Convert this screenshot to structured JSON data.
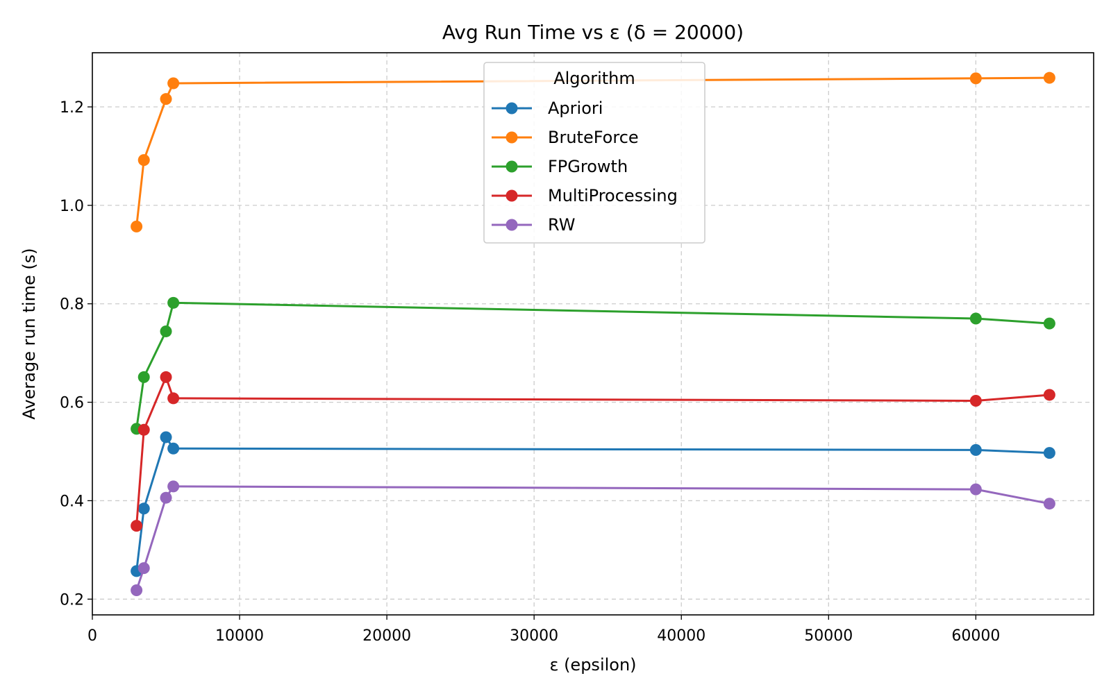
{
  "chart_data": {
    "type": "line",
    "title": "Avg Run Time vs ε (δ = 20000)",
    "xlabel": "ε (epsilon)",
    "ylabel": "Average run time (s)",
    "xlim": [
      0,
      68000
    ],
    "ylim": [
      0.168,
      1.31
    ],
    "xticks": [
      0,
      10000,
      20000,
      30000,
      40000,
      50000,
      60000
    ],
    "yticks": [
      0.2,
      0.4,
      0.6,
      0.8,
      1.0,
      1.2
    ],
    "ytick_labels": [
      "0.2",
      "0.4",
      "0.6",
      "0.8",
      "1.0",
      "1.2"
    ],
    "grid": true,
    "legend": {
      "title": "Algorithm",
      "position": "top-center"
    },
    "x": [
      3000,
      3500,
      5000,
      5500,
      60000,
      65000
    ],
    "series": [
      {
        "name": "Apriori",
        "color": "#1f77b4",
        "values": [
          0.257,
          0.384,
          0.529,
          0.506,
          0.503,
          0.497
        ]
      },
      {
        "name": "BruteForce",
        "color": "#ff7f0e",
        "values": [
          0.957,
          1.092,
          1.216,
          1.248,
          1.258,
          1.259
        ]
      },
      {
        "name": "FPGrowth",
        "color": "#2ca02c",
        "values": [
          0.546,
          0.651,
          0.744,
          0.802,
          0.77,
          0.76
        ]
      },
      {
        "name": "MultiProcessing",
        "color": "#d62728",
        "values": [
          0.349,
          0.544,
          0.651,
          0.608,
          0.603,
          0.615
        ]
      },
      {
        "name": "RW",
        "color": "#9467bd",
        "values": [
          0.218,
          0.263,
          0.406,
          0.429,
          0.423,
          0.394
        ]
      }
    ]
  }
}
